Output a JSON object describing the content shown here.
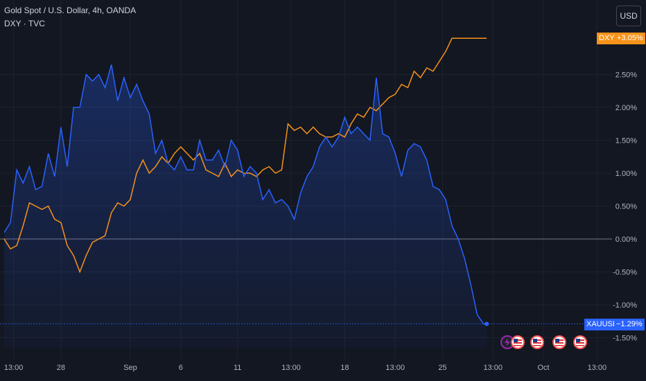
{
  "header": {
    "title": "Gold Spot / U.S. Dollar, 4h, OANDA",
    "compare": "DXY · TVC",
    "currency_button": "USD"
  },
  "badges": {
    "dxy_name": "DXY",
    "dxy_value": "+3.05%",
    "xau_name": "XAUUSD",
    "xau_value": "−1.29%"
  },
  "colors": {
    "background": "#131722",
    "xau": "#2962ff",
    "dxy": "#f7931a",
    "grid": "#1e222d",
    "zero_line": "#787b86",
    "event_flag": "#ff5252",
    "event_bolt": "#9c27b0"
  },
  "events": [
    "lightning-event-icon",
    "us-flag-icon",
    "us-flag-icon",
    "us-flag-icon",
    "us-flag-icon"
  ],
  "chart_data": {
    "type": "line",
    "ylim": [
      -1.65,
      3.3
    ],
    "y_ticks": [
      "2.50%",
      "2.00%",
      "1.50%",
      "1.00%",
      "0.50%",
      "0.00%",
      "-0.50%",
      "-1.00%",
      "-1.50%"
    ],
    "y_tick_values": [
      2.5,
      2.0,
      1.5,
      1.0,
      0.5,
      0.0,
      -0.5,
      -1.0,
      -1.5
    ],
    "x_ticks": [
      "13:00",
      "28",
      "Sep",
      "6",
      "11",
      "13:00",
      "18",
      "13:00",
      "25",
      "13:00",
      "Oct",
      "13:00"
    ],
    "x_tick_index": [
      3,
      18,
      40,
      56,
      74,
      91,
      108,
      124,
      139,
      155,
      171,
      188
    ],
    "x_range": [
      0,
      200
    ],
    "series": [
      {
        "name": "XAUUSD",
        "x": [
          0,
          2,
          4,
          6,
          8,
          10,
          12,
          14,
          16,
          18,
          20,
          22,
          24,
          26,
          28,
          30,
          32,
          34,
          36,
          38,
          40,
          42,
          44,
          46,
          48,
          50,
          52,
          54,
          56,
          58,
          60,
          62,
          64,
          66,
          68,
          70,
          72,
          74,
          76,
          78,
          80,
          82,
          84,
          86,
          88,
          90,
          92,
          94,
          96,
          98,
          100,
          102,
          104,
          106,
          108,
          110,
          112,
          114,
          116,
          118,
          120,
          122,
          124,
          126,
          128,
          130,
          132,
          134,
          136,
          138,
          140,
          142,
          144,
          146,
          148,
          150,
          152,
          153
        ],
        "values": [
          0.1,
          0.25,
          1.05,
          0.85,
          1.1,
          0.75,
          0.8,
          1.3,
          0.95,
          1.7,
          1.1,
          2.0,
          2.0,
          2.5,
          2.4,
          2.5,
          2.3,
          2.65,
          2.1,
          2.45,
          2.15,
          2.35,
          2.1,
          1.9,
          1.3,
          1.5,
          1.15,
          1.05,
          1.25,
          1.05,
          1.05,
          1.5,
          1.2,
          1.2,
          1.35,
          1.1,
          1.5,
          1.35,
          0.95,
          1.1,
          1.0,
          0.6,
          0.75,
          0.55,
          0.6,
          0.5,
          0.3,
          0.7,
          0.95,
          1.1,
          1.4,
          1.55,
          1.4,
          1.55,
          1.85,
          1.6,
          1.7,
          1.6,
          1.5,
          2.45,
          1.6,
          1.55,
          1.3,
          0.95,
          1.35,
          1.45,
          1.4,
          1.2,
          0.8,
          0.75,
          0.6,
          0.2,
          0.0,
          -0.3,
          -0.7,
          -1.15,
          -1.29,
          -1.29
        ]
      },
      {
        "name": "DXY",
        "x": [
          0,
          2,
          4,
          6,
          8,
          10,
          12,
          14,
          16,
          18,
          20,
          22,
          24,
          26,
          28,
          30,
          32,
          34,
          36,
          38,
          40,
          42,
          44,
          46,
          48,
          50,
          52,
          54,
          56,
          58,
          60,
          62,
          64,
          66,
          68,
          70,
          72,
          74,
          76,
          78,
          80,
          82,
          84,
          86,
          88,
          90,
          92,
          94,
          96,
          98,
          100,
          102,
          104,
          106,
          108,
          110,
          112,
          114,
          116,
          118,
          120,
          122,
          124,
          126,
          128,
          130,
          132,
          134,
          136,
          138,
          140,
          142,
          144,
          146,
          148,
          150,
          152,
          153
        ],
        "values": [
          0.0,
          -0.15,
          -0.1,
          0.2,
          0.55,
          0.5,
          0.45,
          0.5,
          0.3,
          0.25,
          -0.1,
          -0.25,
          -0.5,
          -0.25,
          -0.05,
          0.0,
          0.05,
          0.4,
          0.55,
          0.5,
          0.6,
          1.0,
          1.2,
          1.0,
          1.1,
          1.25,
          1.15,
          1.3,
          1.4,
          1.3,
          1.2,
          1.3,
          1.05,
          1.0,
          0.95,
          1.15,
          0.95,
          1.05,
          1.0,
          1.0,
          0.95,
          1.05,
          1.1,
          1.0,
          1.05,
          1.75,
          1.65,
          1.7,
          1.6,
          1.7,
          1.6,
          1.55,
          1.55,
          1.6,
          1.55,
          1.75,
          1.9,
          1.85,
          2.0,
          1.95,
          2.05,
          2.15,
          2.2,
          2.35,
          2.3,
          2.55,
          2.45,
          2.6,
          2.55,
          2.7,
          2.85,
          3.05,
          3.05,
          3.05,
          3.05,
          3.05,
          3.05,
          3.05
        ]
      }
    ]
  }
}
